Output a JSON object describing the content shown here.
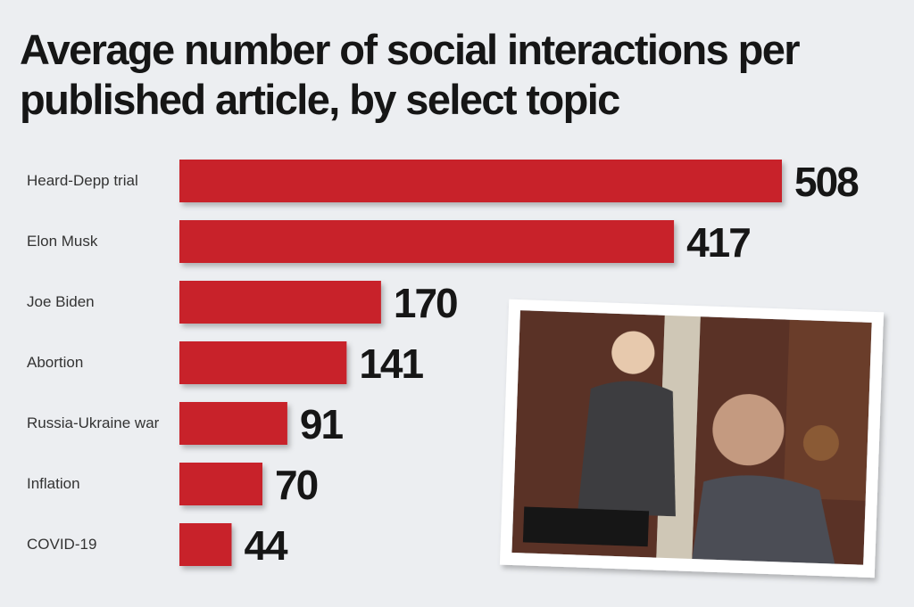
{
  "chart_data": {
    "type": "bar",
    "orientation": "horizontal",
    "title": "Average number of social interactions per published article, by select topic",
    "categories": [
      "Heard-Depp trial",
      "Elon Musk",
      "Joe Biden",
      "Abortion",
      "Russia-Ukraine war",
      "Inflation",
      "COVID-19"
    ],
    "values": [
      508,
      417,
      170,
      141,
      91,
      70,
      44
    ],
    "color": "#c8202a"
  }
}
